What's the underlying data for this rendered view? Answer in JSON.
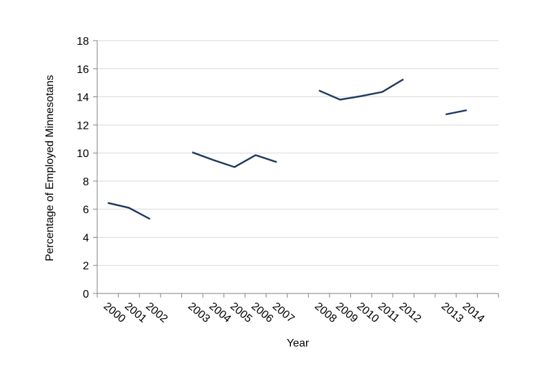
{
  "chart_data": {
    "type": "line",
    "title": "",
    "xlabel": "Year",
    "ylabel": "Percentage of Employed Minnesotans",
    "ylim": [
      0,
      18
    ],
    "yticks": [
      0,
      2,
      4,
      6,
      8,
      10,
      12,
      14,
      16,
      18
    ],
    "grid": true,
    "legend": "none",
    "categories": [
      "2000",
      "2001",
      "2002",
      "",
      "2003",
      "2004",
      "2005",
      "2006",
      "2007",
      "",
      "2008",
      "2009",
      "2010",
      "2011",
      "2012",
      "",
      "2013",
      "2014",
      ""
    ],
    "series": [
      {
        "color": "#1f3a5f",
        "values": [
          6.45,
          6.1,
          5.3,
          null,
          10.05,
          9.5,
          9.0,
          9.85,
          9.35,
          null,
          14.45,
          13.8,
          14.05,
          14.35,
          15.25,
          null,
          12.75,
          13.05,
          null
        ]
      }
    ]
  }
}
